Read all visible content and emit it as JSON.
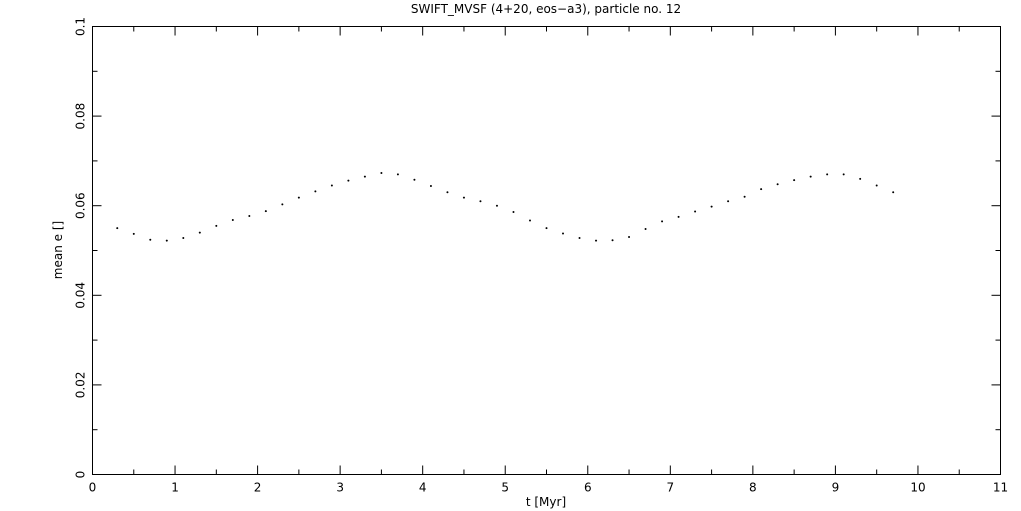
{
  "chart_data": {
    "type": "scatter",
    "title": "SWIFT_MVSF (4+20, eos−a3), particle no. 12",
    "x_label": "t [Myr]",
    "y_label": "mean e []",
    "series": [
      {
        "color": "#000000",
        "x": [
          0.3,
          0.5,
          0.7,
          0.9,
          1.1,
          1.3,
          1.5,
          1.7,
          1.9,
          2.1,
          2.3,
          2.5,
          2.7,
          2.9,
          3.1,
          3.3,
          3.5,
          3.7,
          3.9,
          4.1,
          4.3,
          4.5,
          4.7,
          4.9,
          5.1,
          5.3,
          5.5,
          5.7,
          5.9,
          6.1,
          6.3,
          6.5,
          6.7,
          6.9,
          7.1,
          7.3,
          7.5,
          7.7,
          7.9,
          8.1,
          8.3,
          8.5,
          8.7,
          8.9,
          9.1,
          9.3,
          9.5,
          9.7
        ],
        "values": [
          0.055,
          0.0537,
          0.0524,
          0.0522,
          0.0528,
          0.054,
          0.0555,
          0.0568,
          0.0577,
          0.0588,
          0.0603,
          0.0618,
          0.0632,
          0.0645,
          0.0656,
          0.0665,
          0.0673,
          0.067,
          0.0658,
          0.0644,
          0.063,
          0.0618,
          0.061,
          0.06,
          0.0586,
          0.0567,
          0.055,
          0.0538,
          0.0528,
          0.0522,
          0.0523,
          0.053,
          0.0548,
          0.0565,
          0.0575,
          0.0587,
          0.0598,
          0.061,
          0.062,
          0.0637,
          0.0648,
          0.0657,
          0.0665,
          0.067,
          0.067,
          0.066,
          0.0645,
          0.063
        ]
      }
    ],
    "xlim": [
      0,
      11
    ],
    "xticks": [
      0,
      1,
      2,
      3,
      4,
      5,
      6,
      7,
      8,
      9,
      10,
      11
    ],
    "xminorticks": [
      0.5,
      1.5,
      2.5,
      3.5,
      4.5,
      5.5,
      6.5,
      7.5,
      8.5,
      9.5,
      10.5
    ],
    "ylim": [
      0,
      0.1
    ],
    "yticks": [
      0,
      0.02,
      0.04,
      0.06,
      0.08,
      0.1
    ],
    "yminorticks": [
      0.01,
      0.03,
      0.05,
      0.07,
      0.09
    ]
  }
}
